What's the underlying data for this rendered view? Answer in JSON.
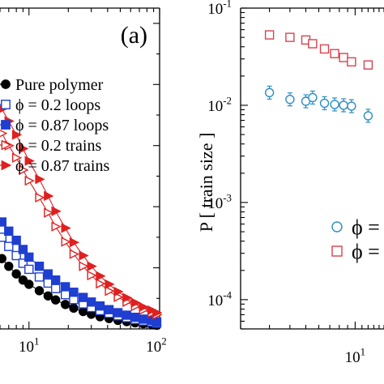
{
  "chart_data": [
    {
      "panel_label": "(a)",
      "type": "scatter",
      "x_scale": "log",
      "y_scale": "linear",
      "xlim": [
        6,
        100
      ],
      "xtick_labels": [
        {
          "value": 10,
          "base": "10",
          "exp": "1"
        },
        {
          "value": 100,
          "base": "10",
          "exp": "2"
        }
      ],
      "legend_position": "right",
      "series": [
        {
          "name": "Pure polymer",
          "legend_text": "Pure polymer",
          "color": "#000000",
          "marker": "filled-circle",
          "x": [
            6.2,
            7,
            8,
            9,
            10,
            12,
            14,
            16,
            19,
            22,
            26,
            30,
            35,
            41,
            48,
            56,
            65,
            75,
            87,
            95
          ],
          "y": [
            0.23,
            0.205,
            0.18,
            0.16,
            0.146,
            0.125,
            0.108,
            0.095,
            0.08,
            0.068,
            0.057,
            0.048,
            0.04,
            0.034,
            0.028,
            0.024,
            0.02,
            0.017,
            0.014,
            0.012
          ]
        },
        {
          "name": "ϕ = 0.2 loops",
          "legend_text": "ϕ = 0.2 loops",
          "color": "#1f3fd0",
          "marker": "open-square",
          "x": [
            6.2,
            7,
            8,
            9,
            10,
            12,
            14,
            16,
            19,
            22,
            26,
            30,
            35,
            41,
            48,
            56,
            65,
            75,
            87,
            95
          ],
          "y": [
            0.3,
            0.27,
            0.24,
            0.215,
            0.195,
            0.17,
            0.15,
            0.132,
            0.112,
            0.096,
            0.082,
            0.07,
            0.06,
            0.051,
            0.043,
            0.037,
            0.031,
            0.026,
            0.022,
            0.019
          ]
        },
        {
          "name": "ϕ = 0.87 loops",
          "legend_text": "ϕ = 0.87 loops",
          "color": "#1f3fd0",
          "marker": "filled-square",
          "x": [
            6.2,
            7,
            8,
            9,
            10,
            12,
            14,
            16,
            19,
            22,
            26,
            30,
            35,
            41,
            48,
            56,
            65,
            75,
            87,
            95
          ],
          "y": [
            0.35,
            0.32,
            0.29,
            0.26,
            0.235,
            0.205,
            0.18,
            0.16,
            0.138,
            0.12,
            0.103,
            0.088,
            0.075,
            0.063,
            0.053,
            0.045,
            0.038,
            0.032,
            0.027,
            0.023
          ]
        },
        {
          "name": "ϕ = 0.2 trains",
          "legend_text": "ϕ = 0.2 trains",
          "color": "#e02020",
          "marker": "open-triangle-right",
          "x": [
            6.2,
            7,
            8,
            9,
            10,
            12,
            14,
            16,
            19,
            22,
            26,
            30,
            35,
            41,
            48,
            56,
            65,
            75,
            87,
            95
          ],
          "y": [
            0.64,
            0.6,
            0.56,
            0.52,
            0.485,
            0.43,
            0.38,
            0.335,
            0.285,
            0.245,
            0.205,
            0.175,
            0.148,
            0.124,
            0.104,
            0.088,
            0.074,
            0.062,
            0.052,
            0.046
          ]
        },
        {
          "name": "ϕ = 0.87 trains",
          "legend_text": "ϕ = 0.87 trains",
          "color": "#e02020",
          "marker": "filled-triangle-right",
          "x": [
            6.2,
            7,
            8,
            9,
            10,
            12,
            14,
            16,
            19,
            22,
            26,
            30,
            35,
            41,
            48,
            56,
            65,
            75,
            87,
            95
          ],
          "y": [
            0.72,
            0.68,
            0.635,
            0.59,
            0.55,
            0.49,
            0.435,
            0.385,
            0.33,
            0.283,
            0.24,
            0.205,
            0.173,
            0.146,
            0.122,
            0.102,
            0.086,
            0.072,
            0.061,
            0.053
          ]
        }
      ]
    },
    {
      "type": "scatter",
      "x_scale": "log",
      "y_scale": "log",
      "ylabel": "P [ train size ]",
      "xlim": [
        2,
        15
      ],
      "ylim": [
        5e-05,
        0.1
      ],
      "xtick_labels": [
        {
          "value": 10,
          "base": "10",
          "exp": "1"
        }
      ],
      "ytick_labels": [
        {
          "value": 0.1,
          "base": "10",
          "exp": "-1"
        },
        {
          "value": 0.01,
          "base": "10",
          "exp": "-2"
        },
        {
          "value": 0.001,
          "base": "10",
          "exp": "-3"
        },
        {
          "value": 0.0001,
          "base": "10",
          "exp": "-4"
        }
      ],
      "legend_position": "bottom-right",
      "series": [
        {
          "legend_text": "ϕ =",
          "color": "#2b8cc4",
          "marker": "open-circle",
          "x": [
            3,
            4,
            5,
            5.5,
            6.5,
            7.5,
            8.5,
            9.5,
            12
          ],
          "y": [
            0.0135,
            0.0115,
            0.011,
            0.012,
            0.0105,
            0.0102,
            0.01,
            0.0098,
            0.0078
          ]
        },
        {
          "legend_text": "ϕ =",
          "color": "#d8424e",
          "marker": "open-square",
          "x": [
            3,
            4,
            5,
            5.5,
            6.5,
            7.5,
            8.5,
            9.5,
            12
          ],
          "y": [
            0.053,
            0.05,
            0.047,
            0.043,
            0.038,
            0.034,
            0.031,
            0.028,
            0.026
          ]
        }
      ]
    }
  ]
}
